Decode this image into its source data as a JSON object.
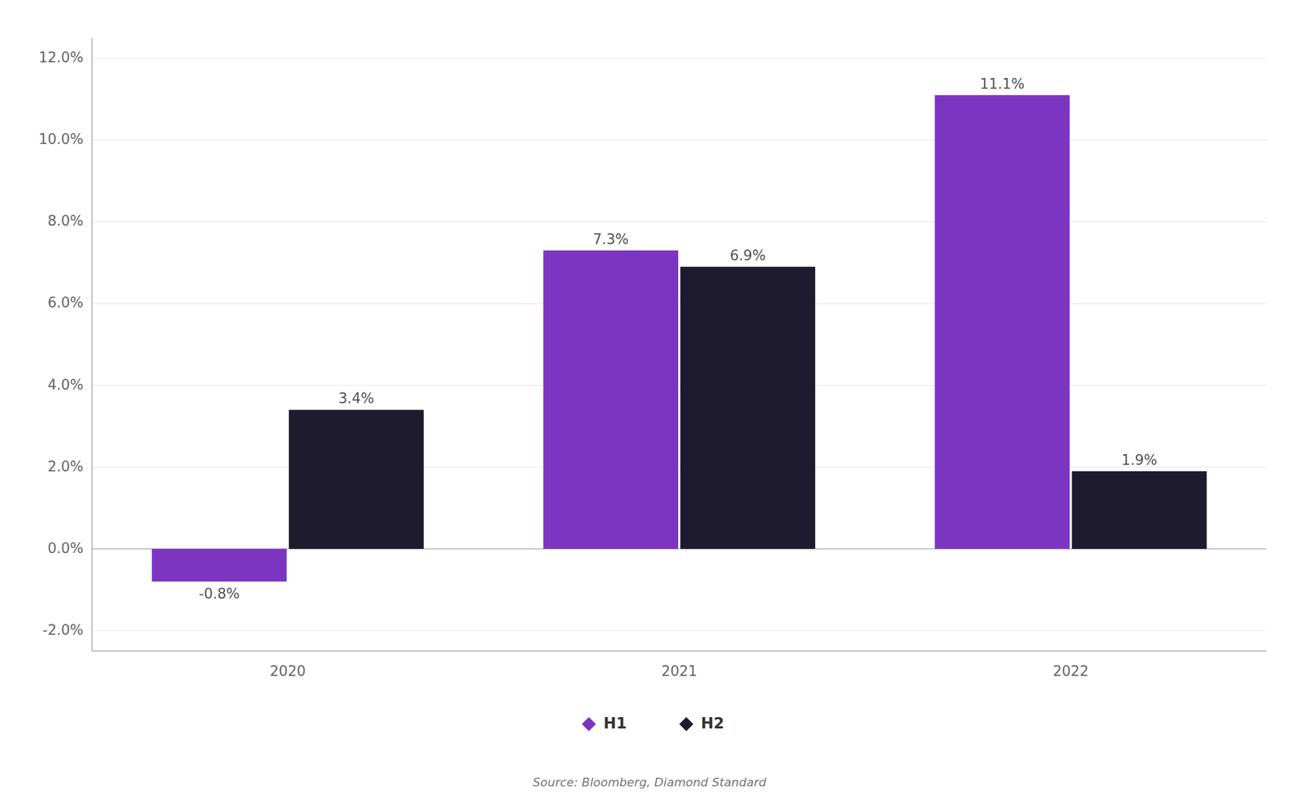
{
  "chart_data": {
    "type": "bar",
    "categories": [
      "2020",
      "2021",
      "2022"
    ],
    "series": [
      {
        "name": "H1",
        "color": "#7B35C1",
        "values": [
          -0.008,
          0.073,
          0.111
        ],
        "value_labels": [
          "-0.8%",
          "7.3%",
          "11.1%"
        ]
      },
      {
        "name": "H2",
        "color": "#1E1B2E",
        "values": [
          0.034,
          0.069,
          0.019
        ],
        "value_labels": [
          "3.4%",
          "6.9%",
          "1.9%"
        ]
      }
    ],
    "ylim": [
      -0.025,
      0.125
    ],
    "yticks": [
      {
        "value": -0.02,
        "label": "-2.0%"
      },
      {
        "value": 0.0,
        "label": "0.0%"
      },
      {
        "value": 0.02,
        "label": "2.0%"
      },
      {
        "value": 0.04,
        "label": "4.0%"
      },
      {
        "value": 0.06,
        "label": "6.0%"
      },
      {
        "value": 0.08,
        "label": "8.0%"
      },
      {
        "value": 0.1,
        "label": "10.0%"
      },
      {
        "value": 0.12,
        "label": "12.0%"
      }
    ],
    "grid": true,
    "data_labels": true,
    "legend": "bottom",
    "annotations": [
      "Source: Bloomberg, Diamond Standard"
    ]
  }
}
